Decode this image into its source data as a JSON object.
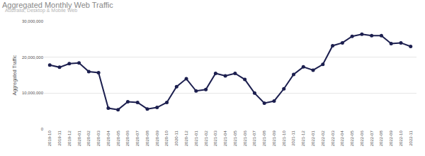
{
  "chart_data": {
    "type": "line",
    "title": "Aggregated Monthly Web Traffic",
    "subtitle": "Australia, Desktop & Mobile Web",
    "y_label": "Aggregated Traffic",
    "categories": [
      "2019-10",
      "2019-11",
      "2019-12",
      "2020-01",
      "2020-02",
      "2020-03",
      "2020-04",
      "2020-05",
      "2020-06",
      "2020-07",
      "2020-08",
      "2020-09",
      "2020-10",
      "2020-11",
      "2020-12",
      "2021-01",
      "2021-02",
      "2021-03",
      "2021-04",
      "2021-05",
      "2021-06",
      "2021-07",
      "2021-08",
      "2021-09",
      "2021-10",
      "2021-11",
      "2021-12",
      "2022-01",
      "2022-02",
      "2022-03",
      "2022-04",
      "2022-05",
      "2022-06",
      "2022-07",
      "2022-08",
      "2022-09",
      "2022-10",
      "2022-11"
    ],
    "values": [
      17800000,
      17200000,
      18200000,
      18400000,
      16000000,
      15700000,
      5800000,
      5400000,
      7600000,
      7400000,
      5600000,
      6000000,
      7400000,
      11800000,
      14000000,
      10600000,
      11000000,
      15500000,
      14800000,
      15500000,
      13800000,
      10000000,
      7200000,
      7800000,
      11200000,
      15200000,
      17300000,
      16400000,
      18000000,
      23200000,
      24000000,
      25800000,
      26400000,
      26000000,
      26000000,
      23800000,
      24000000,
      23000000
    ],
    "color": "#1c1f4f",
    "marker": "circle",
    "line_style": "solid",
    "ylim": [
      0,
      30000000
    ],
    "yticks": [
      0,
      {
        "value": 10000000,
        "label": "10,000,000"
      },
      {
        "value": 20000000,
        "label": "20,000,000"
      },
      {
        "value": 30000000,
        "label": "30,000,000"
      }
    ],
    "grid": true
  }
}
